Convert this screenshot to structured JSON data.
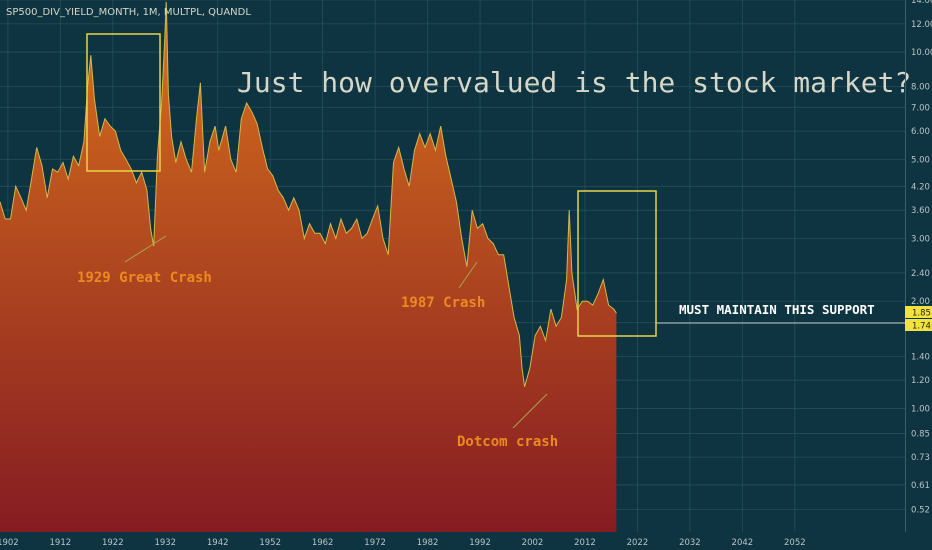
{
  "header": {
    "symbol_label": "SP500_DIV_YIELD_MONTH, 1M, MULTPL, QUANDL"
  },
  "title": "Just how overvalued is the stock market?",
  "annotations": {
    "crash_1929": "1929 Great Crash",
    "crash_1987": "1987 Crash",
    "dotcom": "Dotcom crash",
    "support": "MUST MAINTAIN THIS SUPPORT"
  },
  "price_tags": {
    "upper": "1.85",
    "lower": "1.74"
  },
  "colors": {
    "background": "#0d3440",
    "grid": "#245059",
    "area_top": "#d8711d",
    "area_bottom": "#861c22",
    "line": "#d4b84a",
    "box": "#e8d44a",
    "annotation_text": "#eb8b1f",
    "title_text": "#d6d6c9",
    "tag_fill": "#f2e23f"
  },
  "chart_data": {
    "type": "area",
    "scale": "log",
    "title": "",
    "xlabel": "",
    "ylabel": "",
    "xlim": [
      1900.5,
      2073
    ],
    "ylim": [
      0.45,
      14
    ],
    "x_ticks": [
      1902,
      1912,
      1922,
      1932,
      1942,
      1952,
      1962,
      1972,
      1982,
      1992,
      2002,
      2012,
      2022,
      2032,
      2042,
      2052
    ],
    "x_tick_labels": [
      "1902",
      "1912",
      "1922",
      "1932",
      "1942",
      "1952",
      "1962",
      "1972",
      "1982",
      "1992",
      "2002",
      "2012",
      "2022",
      "2032",
      "2042",
      "2052"
    ],
    "y_ticks": [
      0.52,
      0.61,
      0.73,
      0.85,
      1.0,
      1.2,
      1.4,
      1.74,
      2.0,
      2.4,
      3.0,
      3.6,
      4.2,
      5.0,
      6.0,
      7.0,
      8.0,
      10.0,
      12.0,
      14.0
    ],
    "y_tick_labels": [
      "0.52",
      "0.61",
      "0.73",
      "0.85",
      "1.00",
      "1.20",
      "1.40",
      "1.74",
      "2.00",
      "2.40",
      "3.00",
      "3.60",
      "4.20",
      "5.00",
      "6.00",
      "7.00",
      "8.00",
      "10.00",
      "12.00",
      "14.00"
    ],
    "grid": true,
    "series": [
      {
        "x": [
          1900.5,
          1901.5,
          1902.5,
          1903.5,
          1904.5,
          1905.5,
          1906.5,
          1907.5,
          1908.5,
          1909.5,
          1910.5,
          1911.5,
          1912.5,
          1913.5,
          1914.5,
          1915.5,
          1916.5,
          1917.2,
          1917.8,
          1918.5,
          1919.5,
          1920.5,
          1921.5,
          1922.5,
          1923.5,
          1924.5,
          1925.5,
          1926.5,
          1927.5,
          1928.5,
          1929.2,
          1929.8,
          1930.5,
          1931.3,
          1931.9,
          1932.2,
          1932.6,
          1933.2,
          1934.0,
          1935.0,
          1936.0,
          1937.0,
          1938.0,
          1938.7,
          1939.5,
          1940.5,
          1941.5,
          1942.2,
          1942.8,
          1943.5,
          1944.5,
          1945.5,
          1946.5,
          1947.5,
          1948.5,
          1949.5,
          1950.5,
          1951.5,
          1952.5,
          1953.5,
          1954.5,
          1955.5,
          1956.5,
          1957.5,
          1958.5,
          1959.5,
          1960.5,
          1961.5,
          1962.5,
          1963.5,
          1964.5,
          1965.5,
          1966.5,
          1967.5,
          1968.5,
          1969.5,
          1970.5,
          1971.5,
          1972.5,
          1973.5,
          1974.5,
          1975.5,
          1976.5,
          1977.5,
          1978.5,
          1979.5,
          1980.5,
          1981.5,
          1982.5,
          1983.5,
          1984.5,
          1985.5,
          1986.5,
          1987.5,
          1988.5,
          1989.5,
          1990.5,
          1991.5,
          1992.5,
          1993.5,
          1994.5,
          1995.5,
          1996.5,
          1997.5,
          1998.5,
          1999.5,
          2000.0,
          2000.5,
          2001.5,
          2002.5,
          2003.5,
          2004.5,
          2005.5,
          2006.5,
          2007.5,
          2008.5,
          2009.0,
          2009.5,
          2010.5,
          2011.5,
          2012.5,
          2013.5,
          2014.5,
          2015.5,
          2016.5,
          2017.5,
          2018.0
        ],
        "values": [
          3.8,
          3.4,
          3.4,
          4.2,
          3.9,
          3.6,
          4.4,
          5.4,
          4.8,
          3.9,
          4.7,
          4.6,
          4.9,
          4.4,
          5.1,
          4.8,
          5.6,
          8.0,
          9.8,
          7.4,
          5.8,
          6.5,
          6.2,
          6.0,
          5.3,
          5.0,
          4.7,
          4.3,
          4.6,
          4.1,
          3.2,
          2.85,
          5.1,
          7.2,
          10.8,
          13.8,
          7.6,
          5.8,
          4.9,
          5.6,
          5.0,
          4.6,
          6.6,
          8.2,
          4.6,
          5.6,
          6.2,
          5.3,
          5.7,
          6.2,
          5.0,
          4.6,
          6.5,
          7.2,
          6.8,
          6.3,
          5.4,
          4.7,
          4.5,
          4.1,
          3.9,
          3.6,
          3.9,
          3.6,
          3.0,
          3.3,
          3.1,
          3.1,
          2.9,
          3.3,
          3.0,
          3.4,
          3.1,
          3.2,
          3.4,
          3.0,
          3.1,
          3.4,
          3.7,
          3.0,
          2.7,
          4.9,
          5.4,
          4.7,
          4.2,
          5.3,
          5.9,
          5.4,
          5.9,
          5.3,
          6.2,
          5.1,
          4.4,
          3.8,
          3.0,
          2.5,
          3.6,
          3.2,
          3.3,
          3.0,
          2.9,
          2.7,
          2.7,
          2.2,
          1.8,
          1.6,
          1.3,
          1.15,
          1.3,
          1.6,
          1.7,
          1.55,
          1.9,
          1.7,
          1.8,
          2.3,
          3.6,
          2.4,
          1.9,
          2.0,
          2.0,
          1.95,
          2.1,
          2.3,
          1.95,
          1.9,
          1.85
        ]
      }
    ]
  }
}
